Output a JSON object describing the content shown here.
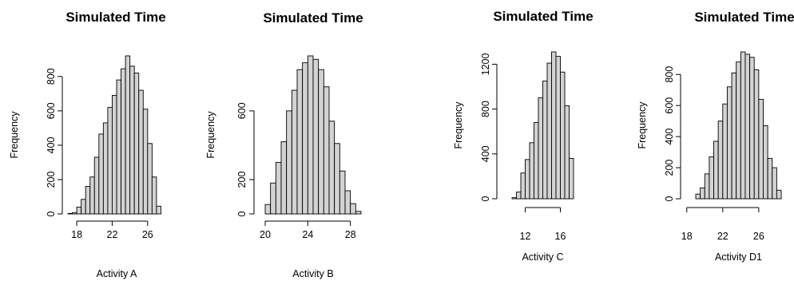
{
  "chart_data": [
    {
      "type": "bar",
      "title": "Simulated Time",
      "xlabel": "Activity A",
      "ylabel": "Frequency",
      "bin_width": 0.5,
      "bin_start": 17,
      "values": [
        3,
        8,
        40,
        85,
        160,
        215,
        330,
        465,
        530,
        620,
        690,
        780,
        845,
        920,
        860,
        820,
        720,
        610,
        410,
        215,
        45
      ],
      "xlim": [
        17,
        28
      ],
      "ylim": [
        0,
        920
      ],
      "xticks": [
        18,
        22,
        26
      ],
      "yticks": [
        0,
        200,
        400,
        600,
        800
      ]
    },
    {
      "type": "bar",
      "title": "Simulated Time",
      "xlabel": "Activity B",
      "ylabel": "Frequency",
      "bin_width": 0.5,
      "bin_start": 20,
      "values": [
        55,
        180,
        300,
        420,
        600,
        720,
        840,
        880,
        920,
        900,
        840,
        740,
        540,
        410,
        250,
        135,
        60,
        15
      ],
      "xlim": [
        20,
        29
      ],
      "ylim": [
        0,
        920
      ],
      "xticks": [
        20,
        24,
        28
      ],
      "yticks": [
        0,
        200,
        600
      ]
    },
    {
      "type": "bar",
      "title": "Simulated Time",
      "xlabel": "Activity C",
      "ylabel": "Frequency",
      "bin_width": 0.5,
      "bin_start": 10.5,
      "values": [
        10,
        60,
        230,
        350,
        500,
        680,
        900,
        1050,
        1210,
        1310,
        1270,
        1130,
        830,
        360
      ],
      "xlim": [
        10.5,
        17.5
      ],
      "ylim": [
        0,
        1310
      ],
      "xticks": [
        12,
        16
      ],
      "yticks": [
        0,
        400,
        800,
        1200
      ]
    },
    {
      "type": "bar",
      "title": "Simulated Time",
      "xlabel": "Activity D1",
      "ylabel": "Frequency",
      "bin_width": 0.5,
      "bin_start": 19,
      "values": [
        30,
        70,
        160,
        270,
        370,
        500,
        610,
        720,
        810,
        880,
        945,
        930,
        910,
        830,
        640,
        470,
        260,
        200,
        55
      ],
      "xlim": [
        19,
        28.5
      ],
      "ylim": [
        0,
        945
      ],
      "xticks": [
        18,
        22,
        26
      ],
      "yticks": [
        0,
        200,
        400,
        600,
        800
      ]
    }
  ]
}
